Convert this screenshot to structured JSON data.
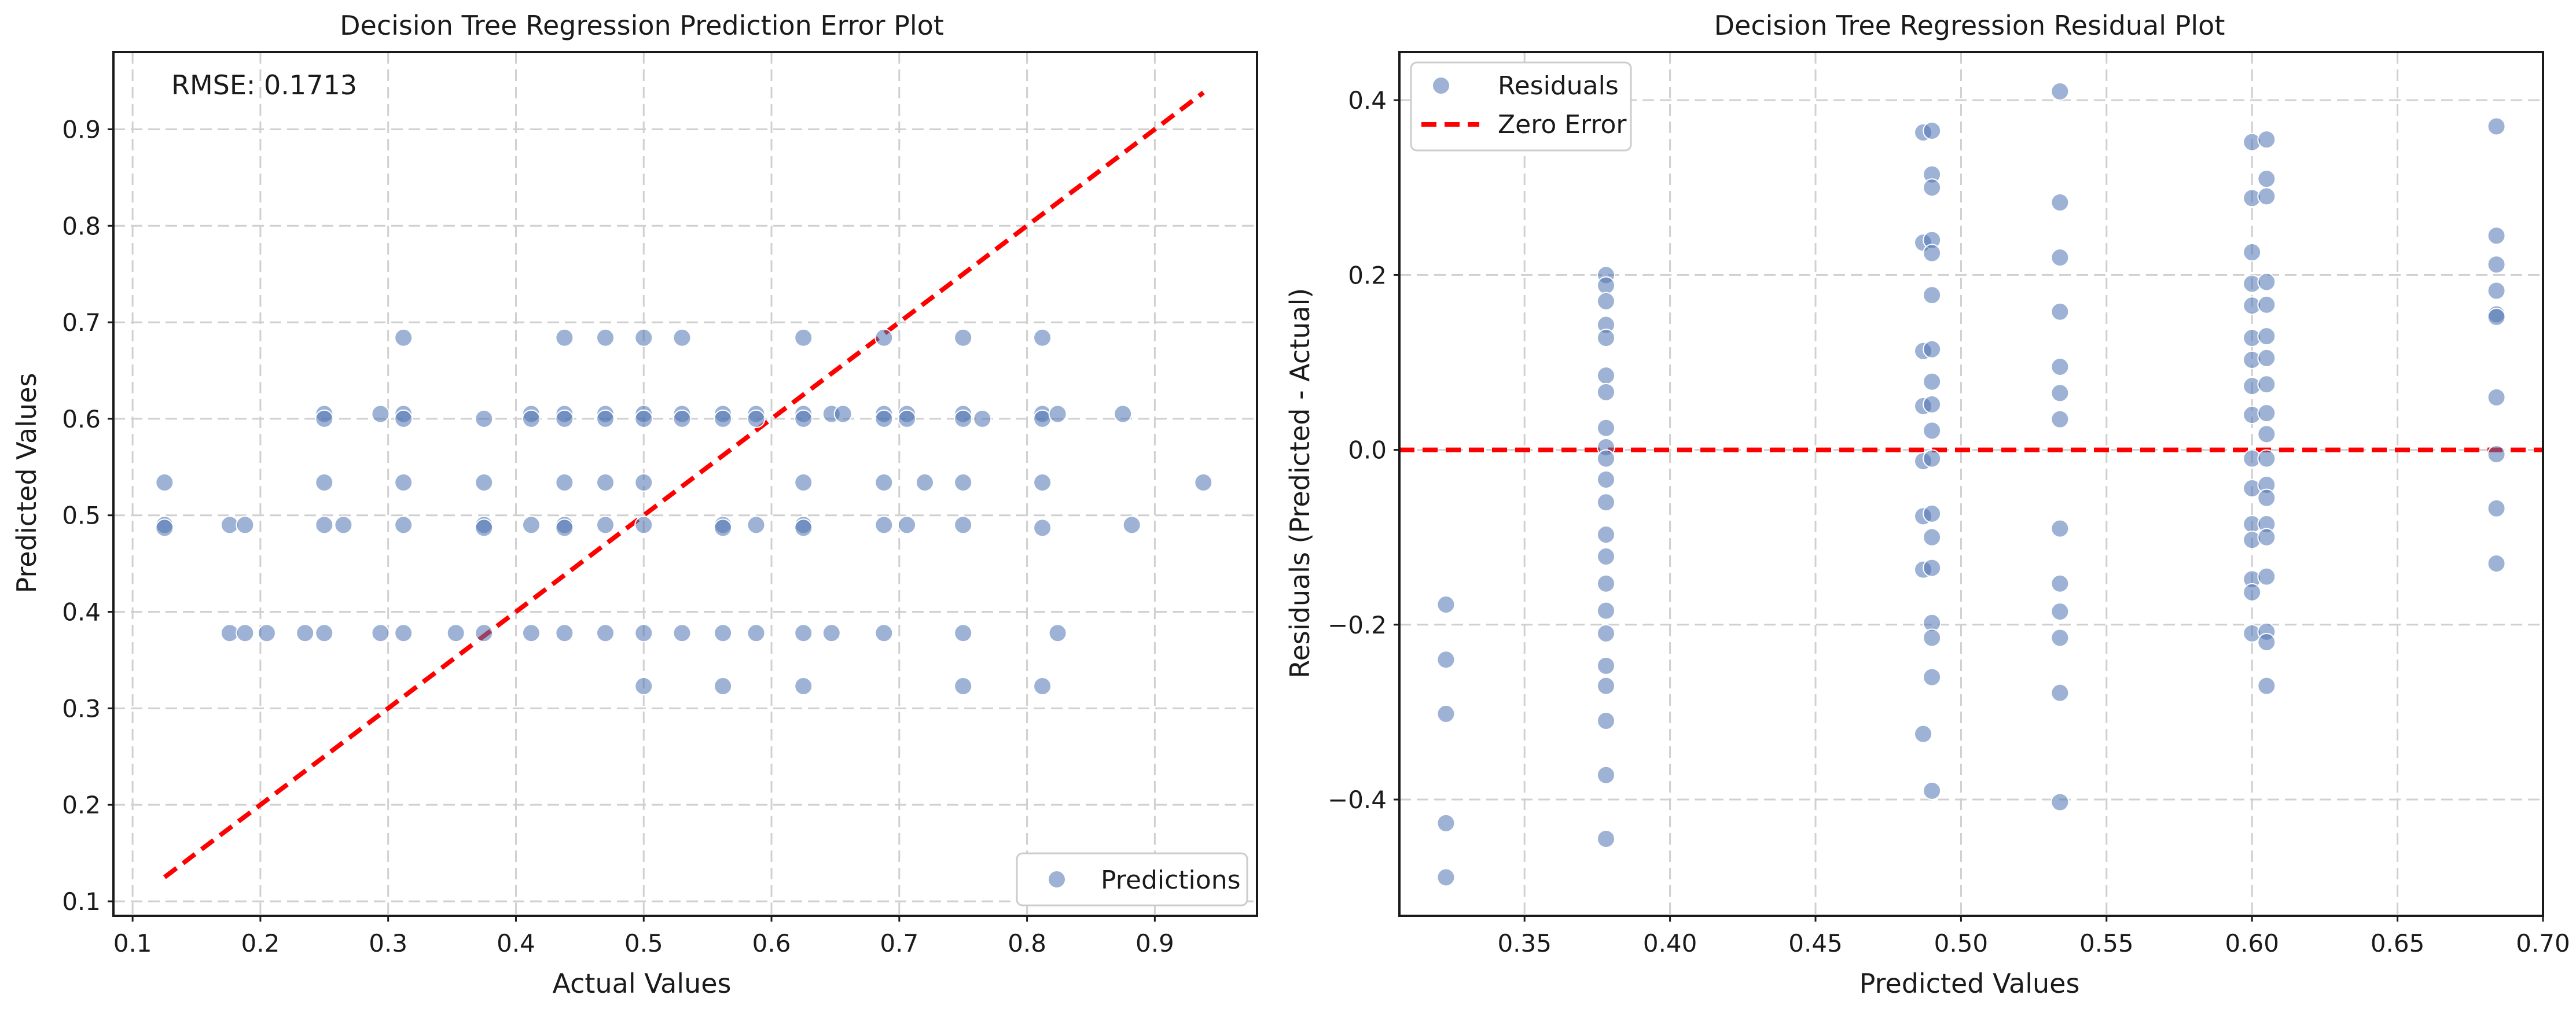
{
  "colors": {
    "point": "#4c72b0",
    "reference_line": "#ff0000",
    "grid": "#d0d0d0",
    "axes": "#1a1a1a"
  },
  "chart_data": [
    {
      "type": "scatter",
      "title": "Decision Tree Regression Prediction Error Plot",
      "xlabel": "Actual Values",
      "ylabel": "Predicted Values",
      "xlim": [
        0.085,
        0.98
      ],
      "ylim": [
        0.085,
        0.98
      ],
      "xticks": [
        "0.1",
        "0.2",
        "0.3",
        "0.4",
        "0.5",
        "0.6",
        "0.7",
        "0.8",
        "0.9"
      ],
      "yticks": [
        "0.1",
        "0.2",
        "0.3",
        "0.4",
        "0.5",
        "0.6",
        "0.7",
        "0.8",
        "0.9"
      ],
      "grid": true,
      "legend_position": "lower-right",
      "annotation": "RMSE: 0.1713",
      "series": [
        {
          "name": "Predictions",
          "marker": "circle",
          "points": [
            [
              0.125,
              0.534
            ],
            [
              0.125,
              0.49
            ],
            [
              0.125,
              0.487
            ],
            [
              0.176,
              0.49
            ],
            [
              0.188,
              0.49
            ],
            [
              0.176,
              0.378
            ],
            [
              0.188,
              0.378
            ],
            [
              0.205,
              0.378
            ],
            [
              0.235,
              0.378
            ],
            [
              0.25,
              0.378
            ],
            [
              0.25,
              0.49
            ],
            [
              0.25,
              0.534
            ],
            [
              0.25,
              0.605
            ],
            [
              0.25,
              0.6
            ],
            [
              0.265,
              0.49
            ],
            [
              0.294,
              0.378
            ],
            [
              0.294,
              0.605
            ],
            [
              0.312,
              0.378
            ],
            [
              0.312,
              0.49
            ],
            [
              0.312,
              0.534
            ],
            [
              0.312,
              0.605
            ],
            [
              0.312,
              0.6
            ],
            [
              0.312,
              0.684
            ],
            [
              0.353,
              0.378
            ],
            [
              0.375,
              0.378
            ],
            [
              0.375,
              0.49
            ],
            [
              0.375,
              0.487
            ],
            [
              0.375,
              0.534
            ],
            [
              0.375,
              0.6
            ],
            [
              0.412,
              0.378
            ],
            [
              0.412,
              0.49
            ],
            [
              0.412,
              0.605
            ],
            [
              0.412,
              0.6
            ],
            [
              0.438,
              0.378
            ],
            [
              0.438,
              0.49
            ],
            [
              0.438,
              0.487
            ],
            [
              0.438,
              0.534
            ],
            [
              0.438,
              0.605
            ],
            [
              0.438,
              0.6
            ],
            [
              0.438,
              0.684
            ],
            [
              0.47,
              0.378
            ],
            [
              0.47,
              0.49
            ],
            [
              0.47,
              0.534
            ],
            [
              0.47,
              0.605
            ],
            [
              0.47,
              0.6
            ],
            [
              0.47,
              0.684
            ],
            [
              0.5,
              0.323
            ],
            [
              0.5,
              0.378
            ],
            [
              0.5,
              0.49
            ],
            [
              0.5,
              0.534
            ],
            [
              0.5,
              0.605
            ],
            [
              0.5,
              0.6
            ],
            [
              0.5,
              0.684
            ],
            [
              0.53,
              0.378
            ],
            [
              0.53,
              0.605
            ],
            [
              0.53,
              0.6
            ],
            [
              0.53,
              0.684
            ],
            [
              0.562,
              0.323
            ],
            [
              0.562,
              0.378
            ],
            [
              0.562,
              0.49
            ],
            [
              0.562,
              0.487
            ],
            [
              0.562,
              0.605
            ],
            [
              0.562,
              0.6
            ],
            [
              0.588,
              0.378
            ],
            [
              0.588,
              0.49
            ],
            [
              0.588,
              0.605
            ],
            [
              0.588,
              0.6
            ],
            [
              0.625,
              0.323
            ],
            [
              0.625,
              0.378
            ],
            [
              0.625,
              0.49
            ],
            [
              0.625,
              0.487
            ],
            [
              0.625,
              0.534
            ],
            [
              0.625,
              0.605
            ],
            [
              0.625,
              0.6
            ],
            [
              0.625,
              0.684
            ],
            [
              0.647,
              0.378
            ],
            [
              0.647,
              0.605
            ],
            [
              0.656,
              0.605
            ],
            [
              0.688,
              0.378
            ],
            [
              0.688,
              0.49
            ],
            [
              0.688,
              0.534
            ],
            [
              0.688,
              0.605
            ],
            [
              0.688,
              0.6
            ],
            [
              0.688,
              0.684
            ],
            [
              0.706,
              0.49
            ],
            [
              0.706,
              0.605
            ],
            [
              0.706,
              0.6
            ],
            [
              0.72,
              0.534
            ],
            [
              0.75,
              0.323
            ],
            [
              0.75,
              0.378
            ],
            [
              0.75,
              0.49
            ],
            [
              0.75,
              0.534
            ],
            [
              0.75,
              0.605
            ],
            [
              0.75,
              0.6
            ],
            [
              0.75,
              0.684
            ],
            [
              0.765,
              0.6
            ],
            [
              0.812,
              0.323
            ],
            [
              0.812,
              0.487
            ],
            [
              0.812,
              0.534
            ],
            [
              0.812,
              0.605
            ],
            [
              0.812,
              0.6
            ],
            [
              0.812,
              0.684
            ],
            [
              0.824,
              0.378
            ],
            [
              0.824,
              0.605
            ],
            [
              0.875,
              0.605
            ],
            [
              0.882,
              0.49
            ],
            [
              0.938,
              0.534
            ]
          ]
        }
      ],
      "reference_line": {
        "style": "dashed",
        "from": [
          0.125,
          0.125
        ],
        "to": [
          0.938,
          0.938
        ]
      }
    },
    {
      "type": "scatter",
      "title": "Decision Tree Regression Residual Plot",
      "xlabel": "Predicted Values",
      "ylabel": "Residuals (Predicted - Actual)",
      "xlim": [
        0.307,
        0.7
      ],
      "ylim": [
        -0.533,
        0.455
      ],
      "xticks": [
        "0.35",
        "0.40",
        "0.45",
        "0.50",
        "0.55",
        "0.60",
        "0.65",
        "0.70"
      ],
      "yticks": [
        "−0.4",
        "−0.2",
        "0.0",
        "0.2",
        "0.4"
      ],
      "grid": true,
      "legend_position": "top-left",
      "series": [
        {
          "name": "Residuals",
          "marker": "circle",
          "points": [
            [
              0.323,
              -0.177
            ],
            [
              0.323,
              -0.24
            ],
            [
              0.323,
              -0.302
            ],
            [
              0.323,
              -0.427
            ],
            [
              0.323,
              -0.489
            ],
            [
              0.378,
              0.2
            ],
            [
              0.378,
              0.188
            ],
            [
              0.378,
              0.17
            ],
            [
              0.378,
              0.143
            ],
            [
              0.378,
              0.128
            ],
            [
              0.378,
              0.085
            ],
            [
              0.378,
              0.066
            ],
            [
              0.378,
              0.025
            ],
            [
              0.378,
              0.003
            ],
            [
              0.378,
              -0.01
            ],
            [
              0.378,
              -0.034
            ],
            [
              0.378,
              -0.06
            ],
            [
              0.378,
              -0.097
            ],
            [
              0.378,
              -0.122
            ],
            [
              0.378,
              -0.153
            ],
            [
              0.378,
              -0.184
            ],
            [
              0.378,
              -0.21
            ],
            [
              0.378,
              -0.247
            ],
            [
              0.378,
              -0.27
            ],
            [
              0.378,
              -0.31
            ],
            [
              0.378,
              -0.372
            ],
            [
              0.378,
              -0.445
            ],
            [
              0.487,
              0.363
            ],
            [
              0.49,
              0.365
            ],
            [
              0.49,
              0.315
            ],
            [
              0.49,
              0.3
            ],
            [
              0.487,
              0.237
            ],
            [
              0.49,
              0.24
            ],
            [
              0.49,
              0.225
            ],
            [
              0.49,
              0.177
            ],
            [
              0.487,
              0.113
            ],
            [
              0.49,
              0.115
            ],
            [
              0.49,
              0.078
            ],
            [
              0.487,
              0.05
            ],
            [
              0.49,
              0.052
            ],
            [
              0.49,
              0.022
            ],
            [
              0.487,
              -0.013
            ],
            [
              0.49,
              -0.01
            ],
            [
              0.487,
              -0.076
            ],
            [
              0.49,
              -0.073
            ],
            [
              0.49,
              -0.1
            ],
            [
              0.487,
              -0.137
            ],
            [
              0.49,
              -0.135
            ],
            [
              0.49,
              -0.198
            ],
            [
              0.49,
              -0.215
            ],
            [
              0.49,
              -0.26
            ],
            [
              0.487,
              -0.325
            ],
            [
              0.49,
              -0.39
            ],
            [
              0.534,
              0.41
            ],
            [
              0.534,
              0.283
            ],
            [
              0.534,
              0.22
            ],
            [
              0.534,
              0.158
            ],
            [
              0.534,
              0.095
            ],
            [
              0.534,
              0.065
            ],
            [
              0.534,
              0.035
            ],
            [
              0.534,
              -0.09
            ],
            [
              0.534,
              -0.153
            ],
            [
              0.534,
              -0.185
            ],
            [
              0.534,
              -0.215
            ],
            [
              0.534,
              -0.278
            ],
            [
              0.534,
              -0.403
            ],
            [
              0.6,
              0.352
            ],
            [
              0.605,
              0.355
            ],
            [
              0.605,
              0.31
            ],
            [
              0.6,
              0.288
            ],
            [
              0.605,
              0.29
            ],
            [
              0.6,
              0.226
            ],
            [
              0.6,
              0.19
            ],
            [
              0.605,
              0.192
            ],
            [
              0.6,
              0.165
            ],
            [
              0.605,
              0.166
            ],
            [
              0.6,
              0.128
            ],
            [
              0.605,
              0.13
            ],
            [
              0.6,
              0.103
            ],
            [
              0.605,
              0.105
            ],
            [
              0.6,
              0.073
            ],
            [
              0.605,
              0.075
            ],
            [
              0.6,
              0.04
            ],
            [
              0.605,
              0.042
            ],
            [
              0.605,
              0.018
            ],
            [
              0.6,
              -0.01
            ],
            [
              0.605,
              -0.01
            ],
            [
              0.6,
              -0.044
            ],
            [
              0.605,
              -0.04
            ],
            [
              0.605,
              -0.055
            ],
            [
              0.6,
              -0.085
            ],
            [
              0.605,
              -0.085
            ],
            [
              0.6,
              -0.103
            ],
            [
              0.605,
              -0.1
            ],
            [
              0.6,
              -0.148
            ],
            [
              0.605,
              -0.145
            ],
            [
              0.6,
              -0.163
            ],
            [
              0.6,
              -0.21
            ],
            [
              0.605,
              -0.208
            ],
            [
              0.605,
              -0.22
            ],
            [
              0.605,
              -0.27
            ],
            [
              0.684,
              0.37
            ],
            [
              0.684,
              0.245
            ],
            [
              0.684,
              0.212
            ],
            [
              0.684,
              0.182
            ],
            [
              0.684,
              0.155
            ],
            [
              0.684,
              0.152
            ],
            [
              0.684,
              0.06
            ],
            [
              0.684,
              -0.005
            ],
            [
              0.684,
              -0.067
            ],
            [
              0.684,
              -0.13
            ]
          ]
        }
      ],
      "reference_line": {
        "name": "Zero Error",
        "style": "dashed",
        "y": 0.0
      }
    }
  ]
}
